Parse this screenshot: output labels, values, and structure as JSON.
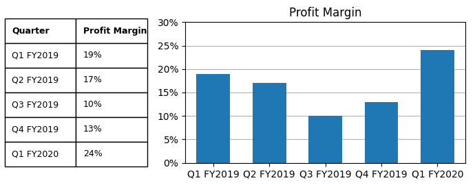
{
  "chart_data": [
    {
      "type": "table",
      "columns": [
        "Quarter",
        "Profit Margin"
      ],
      "rows": [
        [
          "Q1 FY2019",
          "19%"
        ],
        [
          "Q2 FY2019",
          "17%"
        ],
        [
          "Q3 FY2019",
          "10%"
        ],
        [
          "Q4 FY2019",
          "13%"
        ],
        [
          "Q1 FY2020",
          "24%"
        ]
      ]
    },
    {
      "type": "bar",
      "title": "Profit Margin",
      "categories": [
        "Q1 FY2019",
        "Q2 FY2019",
        "Q3 FY2019",
        "Q4 FY2019",
        "Q1 FY2020"
      ],
      "values": [
        19,
        17,
        10,
        13,
        24
      ],
      "ylim": [
        0,
        30
      ],
      "yticks": [
        {
          "value": 0,
          "label": "0%"
        },
        {
          "value": 5,
          "label": "5%"
        },
        {
          "value": 10,
          "label": "10%"
        },
        {
          "value": 15,
          "label": "15%"
        },
        {
          "value": 20,
          "label": "20%"
        },
        {
          "value": 25,
          "label": "25%"
        },
        {
          "value": 30,
          "label": "30%"
        }
      ],
      "grid": true
    }
  ]
}
